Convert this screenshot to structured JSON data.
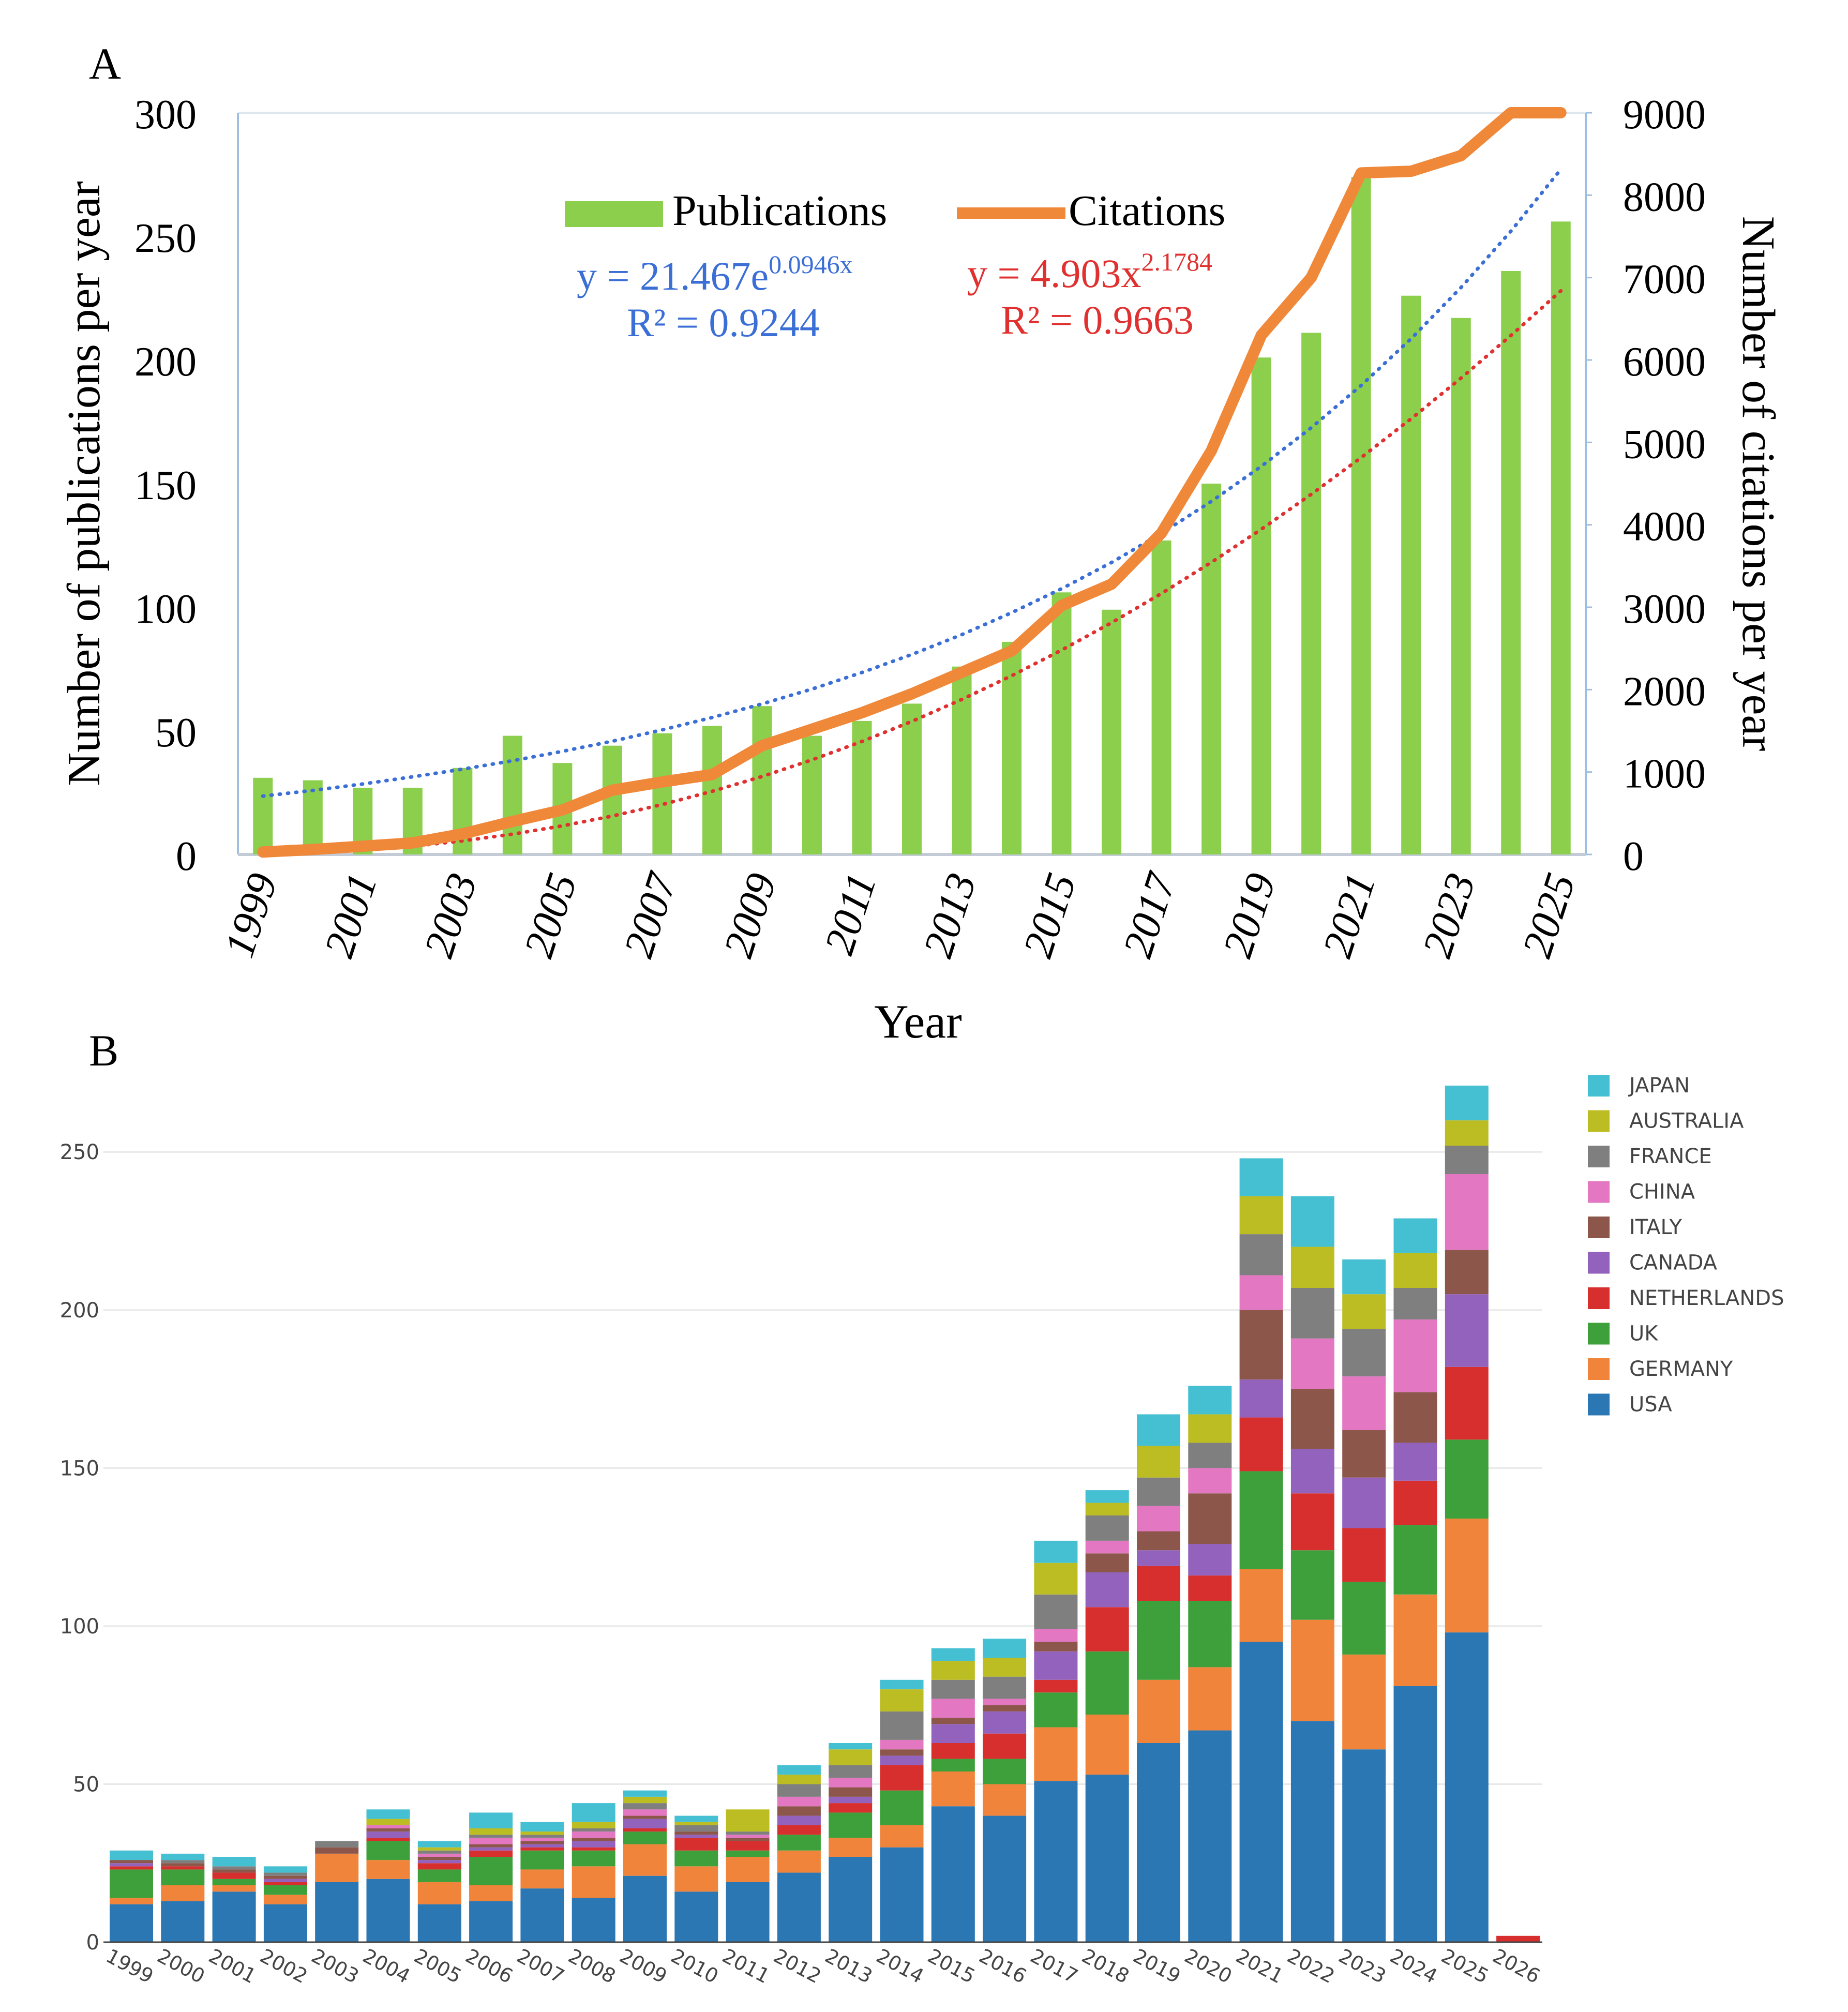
{
  "panel_labels": {
    "a": "A",
    "b": "B"
  },
  "chart_data": [
    {
      "panel": "A",
      "type": "bar",
      "xlabel": "Year",
      "ylabel": "Number of publications per year",
      "y2label": "Number of citations per year",
      "ylim": [
        0,
        300
      ],
      "y2lim": [
        0,
        9000
      ],
      "y_ticks": [
        "0",
        "50",
        "100",
        "150",
        "200",
        "250",
        "300"
      ],
      "y2_ticks": [
        "0",
        "1000",
        "2000",
        "3000",
        "4000",
        "5000",
        "6000",
        "7000",
        "8000",
        "9000"
      ],
      "x_tick_labels": [
        "1999",
        "2001",
        "2003",
        "2005",
        "2007",
        "2009",
        "2011",
        "2013",
        "2015",
        "2017",
        "2019",
        "2021",
        "2023",
        "2025"
      ],
      "grid": false,
      "legend_position": "top-center",
      "x": [
        1999,
        2000,
        2001,
        2002,
        2003,
        2004,
        2005,
        2006,
        2007,
        2008,
        2009,
        2010,
        2011,
        2012,
        2013,
        2014,
        2015,
        2016,
        2017,
        2018,
        2019,
        2020,
        2021,
        2022,
        2023,
        2024,
        2025
      ],
      "series": [
        {
          "name": "Publications",
          "type": "bar",
          "axis": "left",
          "color": "#8ccf4d",
          "values": [
            31,
            30,
            27,
            27,
            35,
            48,
            37,
            44,
            49,
            52,
            60,
            48,
            54,
            61,
            76,
            86,
            106,
            99,
            127,
            150,
            201,
            211,
            274,
            226,
            217,
            236,
            256
          ]
        },
        {
          "name": "Citations",
          "type": "line",
          "axis": "right",
          "color": "#f0883a",
          "values": [
            30,
            60,
            100,
            140,
            250,
            400,
            540,
            780,
            880,
            970,
            1320,
            1520,
            1720,
            1950,
            2210,
            2470,
            3020,
            3280,
            3900,
            4900,
            6300,
            7000,
            8270,
            8290,
            8480,
            9000,
            9000
          ]
        }
      ],
      "trendlines": [
        {
          "series": "Publications",
          "kind": "exponential",
          "equation_main": "y = 21.467e",
          "equation_sup": "0.0946x",
          "r2": "R² = 0.9244",
          "color": "#3b6fd6",
          "values": [
            23.6,
            25.9,
            28.5,
            31.4,
            34.5,
            37.9,
            41.7,
            45.8,
            50.4,
            55.4,
            60.9,
            66.9,
            73.6,
            80.9,
            88.9,
            97.8,
            107.5,
            118.1,
            129.9,
            142.8,
            157.0,
            172.6,
            189.7,
            208.6,
            229.3,
            252.1,
            277.1
          ]
        },
        {
          "series": "Citations",
          "kind": "power",
          "equation_main": "y = 4.903x",
          "equation_sup": "2.1784",
          "r2": "R² = 0.9663",
          "color": "#e03030",
          "values": [
            5,
            22,
            54,
            100,
            165,
            246,
            347,
            466,
            606,
            766,
            946,
            1148,
            1371,
            1615,
            1881,
            2169,
            2480,
            2812,
            3167,
            3545,
            3946,
            4370,
            4816,
            5286,
            5780,
            6297,
            6838
          ]
        }
      ]
    },
    {
      "panel": "B",
      "type": "bar",
      "stacked": true,
      "xlabel": "",
      "ylabel": "",
      "ylim": [
        0,
        270
      ],
      "y_ticks": [
        "0",
        "50",
        "100",
        "150",
        "200",
        "250"
      ],
      "grid": true,
      "legend_position": "right",
      "categories": [
        "1999",
        "2000",
        "2001",
        "2002",
        "2003",
        "2004",
        "2005",
        "2006",
        "2007",
        "2008",
        "2009",
        "2010",
        "2011",
        "2012",
        "2013",
        "2014",
        "2015",
        "2016",
        "2017",
        "2018",
        "2019",
        "2020",
        "2021",
        "2022",
        "2023",
        "2024",
        "2025",
        "2026"
      ],
      "series": [
        {
          "name": "USA",
          "color": "#2a77b4",
          "values": [
            12,
            13,
            16,
            12,
            19,
            20,
            12,
            13,
            17,
            14,
            21,
            16,
            19,
            22,
            27,
            30,
            43,
            40,
            51,
            53,
            63,
            67,
            95,
            70,
            61,
            81,
            98,
            0
          ]
        },
        {
          "name": "GERMANY",
          "color": "#f0843a",
          "values": [
            2,
            5,
            2,
            3,
            9,
            6,
            7,
            5,
            6,
            10,
            10,
            8,
            8,
            7,
            6,
            7,
            11,
            10,
            17,
            19,
            20,
            20,
            23,
            32,
            30,
            29,
            36,
            0
          ]
        },
        {
          "name": "UK",
          "color": "#3ea03a",
          "values": [
            9,
            5,
            2,
            3,
            0,
            6,
            4,
            9,
            6,
            5,
            4,
            5,
            2,
            5,
            8,
            11,
            4,
            8,
            11,
            20,
            25,
            21,
            31,
            22,
            23,
            22,
            25,
            0
          ]
        },
        {
          "name": "NETHERLANDS",
          "color": "#d72e2e",
          "values": [
            1,
            1,
            2,
            1,
            0,
            1,
            2,
            2,
            1,
            1,
            1,
            4,
            3,
            3,
            3,
            8,
            5,
            8,
            4,
            14,
            11,
            8,
            17,
            18,
            17,
            14,
            23,
            2
          ]
        },
        {
          "name": "CANADA",
          "color": "#9262bd",
          "values": [
            1,
            0,
            0,
            1,
            0,
            2,
            1,
            1,
            1,
            2,
            3,
            1,
            0,
            3,
            2,
            3,
            6,
            7,
            9,
            11,
            5,
            10,
            12,
            14,
            16,
            12,
            23,
            0
          ]
        },
        {
          "name": "ITALY",
          "color": "#8c564b",
          "values": [
            1,
            1,
            1,
            1,
            2,
            1,
            1,
            1,
            1,
            1,
            1,
            1,
            1,
            3,
            3,
            2,
            2,
            2,
            3,
            6,
            6,
            16,
            22,
            19,
            15,
            16,
            14,
            0
          ]
        },
        {
          "name": "CHINA",
          "color": "#e377c2",
          "values": [
            0,
            0,
            0,
            0,
            0,
            1,
            1,
            2,
            1,
            2,
            2,
            0,
            1,
            3,
            3,
            3,
            6,
            2,
            4,
            4,
            8,
            8,
            11,
            16,
            17,
            23,
            24,
            0
          ]
        },
        {
          "name": "FRANCE",
          "color": "#7f7f7f",
          "values": [
            0,
            1,
            1,
            1,
            2,
            0,
            1,
            1,
            1,
            1,
            2,
            2,
            1,
            4,
            4,
            9,
            6,
            7,
            11,
            8,
            9,
            8,
            13,
            16,
            15,
            10,
            9,
            0
          ]
        },
        {
          "name": "AUSTRALIA",
          "color": "#bcbd22",
          "values": [
            0,
            0,
            0,
            0,
            0,
            2,
            1,
            2,
            1,
            2,
            2,
            1,
            7,
            3,
            5,
            7,
            6,
            6,
            10,
            4,
            10,
            9,
            12,
            13,
            11,
            11,
            8,
            0
          ]
        },
        {
          "name": "JAPAN",
          "color": "#45c0d2",
          "values": [
            3,
            2,
            3,
            2,
            0,
            3,
            2,
            5,
            3,
            6,
            2,
            2,
            0,
            3,
            2,
            3,
            4,
            6,
            7,
            4,
            10,
            9,
            12,
            16,
            11,
            11,
            11,
            0
          ]
        }
      ]
    }
  ]
}
